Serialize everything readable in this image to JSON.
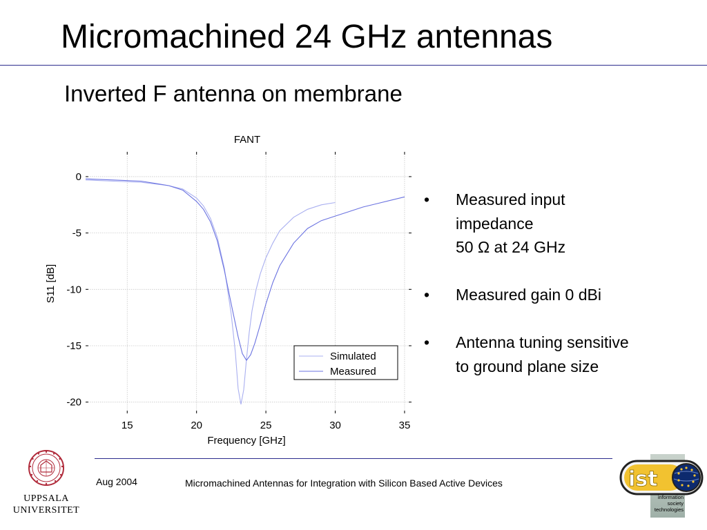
{
  "slide": {
    "title": "Micromachined 24 GHz antennas",
    "subtitle": "Inverted F antenna on membrane"
  },
  "chart_data": {
    "type": "line",
    "title": "FANT",
    "xlabel": "Frequency [GHz]",
    "ylabel": "S11 [dB]",
    "xlim": [
      12,
      35.5
    ],
    "ylim": [
      -21,
      2.2
    ],
    "xticks": [
      15,
      20,
      25,
      30,
      35
    ],
    "xtick_labels": [
      "15",
      "20",
      "25",
      "30",
      "35"
    ],
    "yticks": [
      0,
      -5,
      -10,
      -15,
      -20
    ],
    "ytick_labels": [
      "0",
      "-5",
      "-10",
      "-15",
      "-20"
    ],
    "grid": true,
    "legend": "bottom-right",
    "series": [
      {
        "name": "Simulated",
        "color": "#a9aff0",
        "x": [
          12,
          14,
          16,
          18,
          19,
          20,
          20.5,
          21,
          21.5,
          22,
          22.5,
          22.8,
          23.0,
          23.2,
          23.4,
          23.6,
          23.8,
          24.0,
          24.3,
          24.6,
          25,
          25.5,
          26,
          27,
          28,
          29,
          30
        ],
        "y": [
          -0.3,
          -0.4,
          -0.5,
          -0.8,
          -1.1,
          -1.9,
          -2.6,
          -3.7,
          -5.4,
          -8.1,
          -12.2,
          -15.6,
          -18.8,
          -20.2,
          -18.9,
          -16.2,
          -13.8,
          -11.9,
          -10.0,
          -8.6,
          -7.2,
          -5.9,
          -4.8,
          -3.6,
          -2.9,
          -2.5,
          -2.3
        ]
      },
      {
        "name": "Measured",
        "color": "#6a72e0",
        "x": [
          12,
          14,
          16,
          17,
          18,
          19,
          20,
          20.5,
          21,
          21.5,
          22,
          22.5,
          23,
          23.3,
          23.6,
          23.9,
          24.2,
          24.6,
          25,
          25.5,
          26,
          27,
          28,
          29,
          30,
          31,
          32,
          33,
          34,
          35
        ],
        "y": [
          -0.2,
          -0.3,
          -0.4,
          -0.6,
          -0.8,
          -1.2,
          -2.2,
          -2.9,
          -4.0,
          -5.7,
          -8.3,
          -11.3,
          -14.2,
          -15.7,
          -16.3,
          -15.8,
          -14.8,
          -13.1,
          -11.3,
          -9.4,
          -7.9,
          -5.9,
          -4.6,
          -3.9,
          -3.5,
          -3.1,
          -2.7,
          -2.4,
          -2.1,
          -1.8
        ]
      }
    ]
  },
  "bullets": [
    {
      "lines": [
        "Measured input",
        "impedance",
        "50 Ω at 24 GHz"
      ]
    },
    {
      "lines": [
        "Measured gain 0 dBi"
      ]
    },
    {
      "lines": [
        "Antenna tuning sensitive",
        "to ground plane size"
      ]
    }
  ],
  "footer": {
    "date": "Aug 2004",
    "text": "Micromachined Antennas for Integration with Silicon Based Active Devices"
  },
  "logos": {
    "uppsala": {
      "name_line1": "UPPSALA",
      "name_line2": "UNIVERSITET",
      "seal_color": "#b02a3a"
    },
    "ist": {
      "wordmark": "ist",
      "caption_line1": "information",
      "caption_line2": "society",
      "caption_line3": "technologies"
    }
  },
  "colors": {
    "rule": "#2b2b8c",
    "grid": "#c8c8c8"
  },
  "bullet_symbol": "•"
}
